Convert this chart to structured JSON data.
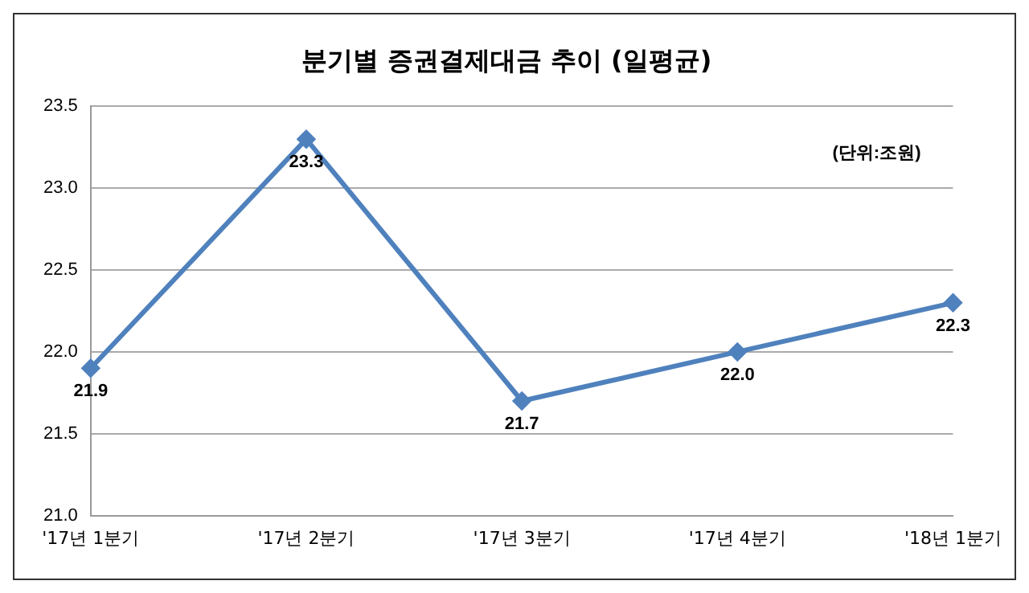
{
  "chart_data": {
    "type": "line",
    "title": "분기별 증권결제대금 추이 (일평균)",
    "categories": [
      "'17년 1분기",
      "'17년 2분기",
      "'17년 3분기",
      "'17년 4분기",
      "'18년 1분기"
    ],
    "series": [
      {
        "color": "#4f81bd",
        "values": [
          21.9,
          23.3,
          21.7,
          22.0,
          22.3
        ],
        "value_labels": [
          "21.9",
          "23.3",
          "21.7",
          "22.0",
          "22.3"
        ]
      }
    ],
    "ylim": [
      21,
      23.5
    ],
    "yticks": [
      {
        "value": 21,
        "label": "21.0"
      },
      21.5,
      {
        "value": 22,
        "label": "22.0"
      },
      22.5,
      {
        "value": 23,
        "label": "23.0"
      },
      23.5
    ],
    "annotations": [
      "(단위:조원)"
    ],
    "grid": "y",
    "marker": "diamond",
    "line_style": "solid",
    "legend": false
  }
}
